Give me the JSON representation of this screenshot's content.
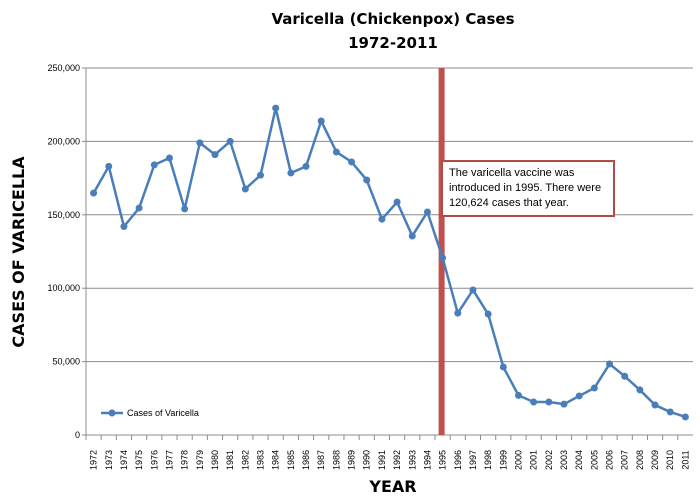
{
  "chart_data": {
    "type": "line",
    "title": "Varicella (Chickenpox) Cases",
    "subtitle": "1972-2011",
    "xlabel": "YEAR",
    "ylabel": "CASES OF VARICELLA",
    "ylim": [
      0,
      250000
    ],
    "yticks": [
      "0",
      "50,000",
      "100,000",
      "150,000",
      "200,000",
      "250,000"
    ],
    "ytick_values": [
      0,
      50000,
      100000,
      150000,
      200000,
      250000
    ],
    "grid": true,
    "legend_position": "bottom-left",
    "categories": [
      "1972",
      "1973",
      "1974",
      "1975",
      "1976",
      "1977",
      "1978",
      "1979",
      "1980",
      "1981",
      "1982",
      "1983",
      "1984",
      "1985",
      "1986",
      "1987",
      "1988",
      "1989",
      "1990",
      "1991",
      "1992",
      "1993",
      "1994",
      "1995",
      "1996",
      "1997",
      "1998",
      "1999",
      "2000",
      "2001",
      "2002",
      "2003",
      "2004",
      "2005",
      "2006",
      "2007",
      "2008",
      "2009",
      "2010",
      "2011"
    ],
    "series": [
      {
        "name": "Cases of Varicella",
        "color": "#4a7ebb",
        "values": [
          164800,
          183000,
          142000,
          154600,
          184000,
          188700,
          154000,
          199000,
          191000,
          200000,
          167600,
          177000,
          222700,
          178500,
          183000,
          213900,
          192800,
          186000,
          173700,
          147000,
          158700,
          135600,
          151900,
          120624,
          83000,
          98800,
          82400,
          46300,
          27000,
          22500,
          22500,
          21000,
          26600,
          32000,
          48400,
          40000,
          30700,
          20400,
          15700,
          12300
        ]
      }
    ],
    "vaccine_marker": {
      "category": "1995",
      "color": "#c0504d"
    },
    "annotation": "The varicella vaccine was introduced in 1995.  There were 120,624  cases that year."
  }
}
